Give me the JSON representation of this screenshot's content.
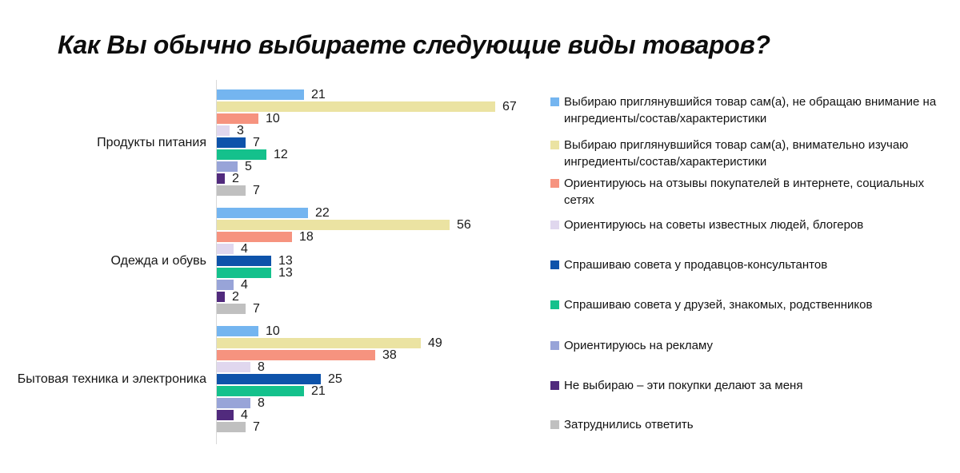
{
  "title": "Как Вы обычно выбираете следующие виды товаров?",
  "chart_data": {
    "type": "bar",
    "orientation": "horizontal",
    "value_labels": true,
    "legend_position": "right",
    "axis_color": "#d9d9d9",
    "categories": [
      "Продукты питания",
      "Одежда и обувь",
      "Бытовая техника и электроника"
    ],
    "series": [
      {
        "name": "Выбираю приглянувшийся товар сам(а), не обращаю внимание на ингредиенты/состав/характеристики",
        "color": "#74b5f0",
        "values": [
          21,
          22,
          10
        ]
      },
      {
        "name": "Выбираю приглянувшийся товар сам(а), внимательно изучаю ингредиенты/состав/характеристики",
        "color": "#ebe3a2",
        "values": [
          67,
          56,
          49
        ]
      },
      {
        "name": "Ориентируюсь на отзывы покупателей в интернете, социальных сетях",
        "color": "#f6937f",
        "values": [
          10,
          18,
          38
        ]
      },
      {
        "name": "Ориентируюсь на советы известных людей, блогеров",
        "color": "#e0d7ee",
        "values": [
          3,
          4,
          8
        ]
      },
      {
        "name": "Спрашиваю совета у продавцов-консультантов",
        "color": "#0e53aa",
        "values": [
          7,
          13,
          25
        ]
      },
      {
        "name": "Спрашиваю совета у друзей, знакомых, родственников",
        "color": "#14c18c",
        "values": [
          12,
          13,
          21
        ]
      },
      {
        "name": "Ориентируюсь на рекламу",
        "color": "#98a4d8",
        "values": [
          5,
          4,
          8
        ]
      },
      {
        "name": "Не выбираю – эти покупки делают за меня",
        "color": "#512a7d",
        "values": [
          2,
          2,
          4
        ]
      },
      {
        "name": "Затруднились ответить",
        "color": "#c0c0c0",
        "values": [
          7,
          7,
          7
        ]
      }
    ]
  }
}
